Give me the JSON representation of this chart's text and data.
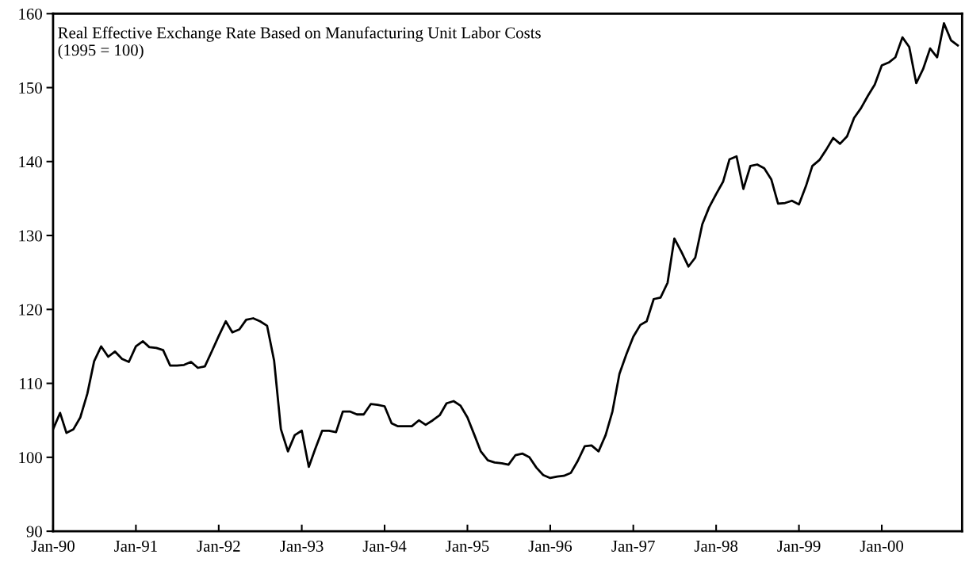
{
  "chart_data": {
    "type": "line",
    "title": "Real Effective Exchange Rate Based on Manufacturing Unit Labor Costs\n(1995 = 100)",
    "x": [
      "1990-01",
      "1990-02",
      "1990-03",
      "1990-04",
      "1990-05",
      "1990-06",
      "1990-07",
      "1990-08",
      "1990-09",
      "1990-10",
      "1990-11",
      "1990-12",
      "1991-01",
      "1991-02",
      "1991-03",
      "1991-04",
      "1991-05",
      "1991-06",
      "1991-07",
      "1991-08",
      "1991-09",
      "1991-10",
      "1991-11",
      "1991-12",
      "1992-01",
      "1992-02",
      "1992-03",
      "1992-04",
      "1992-05",
      "1992-06",
      "1992-07",
      "1992-08",
      "1992-09",
      "1992-10",
      "1992-11",
      "1992-12",
      "1993-01",
      "1993-02",
      "1993-03",
      "1993-04",
      "1993-05",
      "1993-06",
      "1993-07",
      "1993-08",
      "1993-09",
      "1993-10",
      "1993-11",
      "1993-12",
      "1994-01",
      "1994-02",
      "1994-03",
      "1994-04",
      "1994-05",
      "1994-06",
      "1994-07",
      "1994-08",
      "1994-09",
      "1994-10",
      "1994-11",
      "1994-12",
      "1995-01",
      "1995-02",
      "1995-03",
      "1995-04",
      "1995-05",
      "1995-06",
      "1995-07",
      "1995-08",
      "1995-09",
      "1995-10",
      "1995-11",
      "1995-12",
      "1996-01",
      "1996-02",
      "1996-03",
      "1996-04",
      "1996-05",
      "1996-06",
      "1996-07",
      "1996-08",
      "1996-09",
      "1996-10",
      "1996-11",
      "1996-12",
      "1997-01",
      "1997-02",
      "1997-03",
      "1997-04",
      "1997-05",
      "1997-06",
      "1997-07",
      "1997-08",
      "1997-09",
      "1997-10",
      "1997-11",
      "1997-12",
      "1998-01",
      "1998-02",
      "1998-03",
      "1998-04",
      "1998-05",
      "1998-06",
      "1998-07",
      "1998-08",
      "1998-09",
      "1998-10",
      "1998-11",
      "1998-12",
      "1999-01",
      "1999-02",
      "1999-03",
      "1999-04",
      "1999-05",
      "1999-06",
      "1999-07",
      "1999-08",
      "1999-09",
      "1999-10",
      "1999-11",
      "1999-12",
      "2000-01",
      "2000-02",
      "2000-03",
      "2000-04",
      "2000-05",
      "2000-06",
      "2000-07",
      "2000-08",
      "2000-09",
      "2000-10",
      "2000-11",
      "2000-12"
    ],
    "series": [
      {
        "color": "#000000",
        "values": [
          103.8,
          106.0,
          103.3,
          103.8,
          105.4,
          108.6,
          113.0,
          115.0,
          113.6,
          114.3,
          113.3,
          112.9,
          115.0,
          115.7,
          114.9,
          114.8,
          114.5,
          112.4,
          112.4,
          112.5,
          112.9,
          112.1,
          112.3,
          114.3,
          116.4,
          118.4,
          116.9,
          117.3,
          118.6,
          118.8,
          118.4,
          117.8,
          113.1,
          103.8,
          100.8,
          103.0,
          103.6,
          98.7,
          101.1,
          103.6,
          103.6,
          103.4,
          106.2,
          106.2,
          105.8,
          105.8,
          107.2,
          107.1,
          106.9,
          104.6,
          104.2,
          104.2,
          104.2,
          105.0,
          104.4,
          105.0,
          105.7,
          107.3,
          107.6,
          107.0,
          105.4,
          103.0,
          100.8,
          99.6,
          99.3,
          99.2,
          99.0,
          100.3,
          100.5,
          100.0,
          98.6,
          97.6,
          97.2,
          97.4,
          97.5,
          97.9,
          99.5,
          101.5,
          101.6,
          100.8,
          103.0,
          106.2,
          111.3,
          113.9,
          116.3,
          117.9,
          118.4,
          121.4,
          121.6,
          123.6,
          129.6,
          127.8,
          125.8,
          127.0,
          131.5,
          133.8,
          135.6,
          137.3,
          140.3,
          140.7,
          136.3,
          139.4,
          139.6,
          139.1,
          137.6,
          134.3,
          134.4,
          134.7,
          134.2,
          136.7,
          139.4,
          140.2,
          141.6,
          143.2,
          142.4,
          143.4,
          145.9,
          147.2,
          148.9,
          150.4,
          153.0,
          153.4,
          154.1,
          156.8,
          155.5,
          150.6,
          152.5,
          155.3,
          154.1,
          158.7,
          156.4,
          155.7
        ]
      }
    ],
    "xlim": [
      "1990-01",
      "2000-12-20"
    ],
    "xticks": [
      {
        "value": "1990-01",
        "label": "Jan-90"
      },
      {
        "value": "1991-01",
        "label": "Jan-91"
      },
      {
        "value": "1992-01",
        "label": "Jan-92"
      },
      {
        "value": "1993-01",
        "label": "Jan-93"
      },
      {
        "value": "1994-01",
        "label": "Jan-94"
      },
      {
        "value": "1995-01",
        "label": "Jan-95"
      },
      {
        "value": "1996-01",
        "label": "Jan-96"
      },
      {
        "value": "1997-01",
        "label": "Jan-97"
      },
      {
        "value": "1998-01",
        "label": "Jan-98"
      },
      {
        "value": "1999-01",
        "label": "Jan-99"
      },
      {
        "value": "2000-01",
        "label": "Jan-00"
      }
    ],
    "ylim": [
      90,
      160
    ],
    "yticks": [
      90,
      100,
      110,
      120,
      130,
      140,
      150,
      160
    ],
    "marker": "none",
    "line_style": "solid"
  }
}
